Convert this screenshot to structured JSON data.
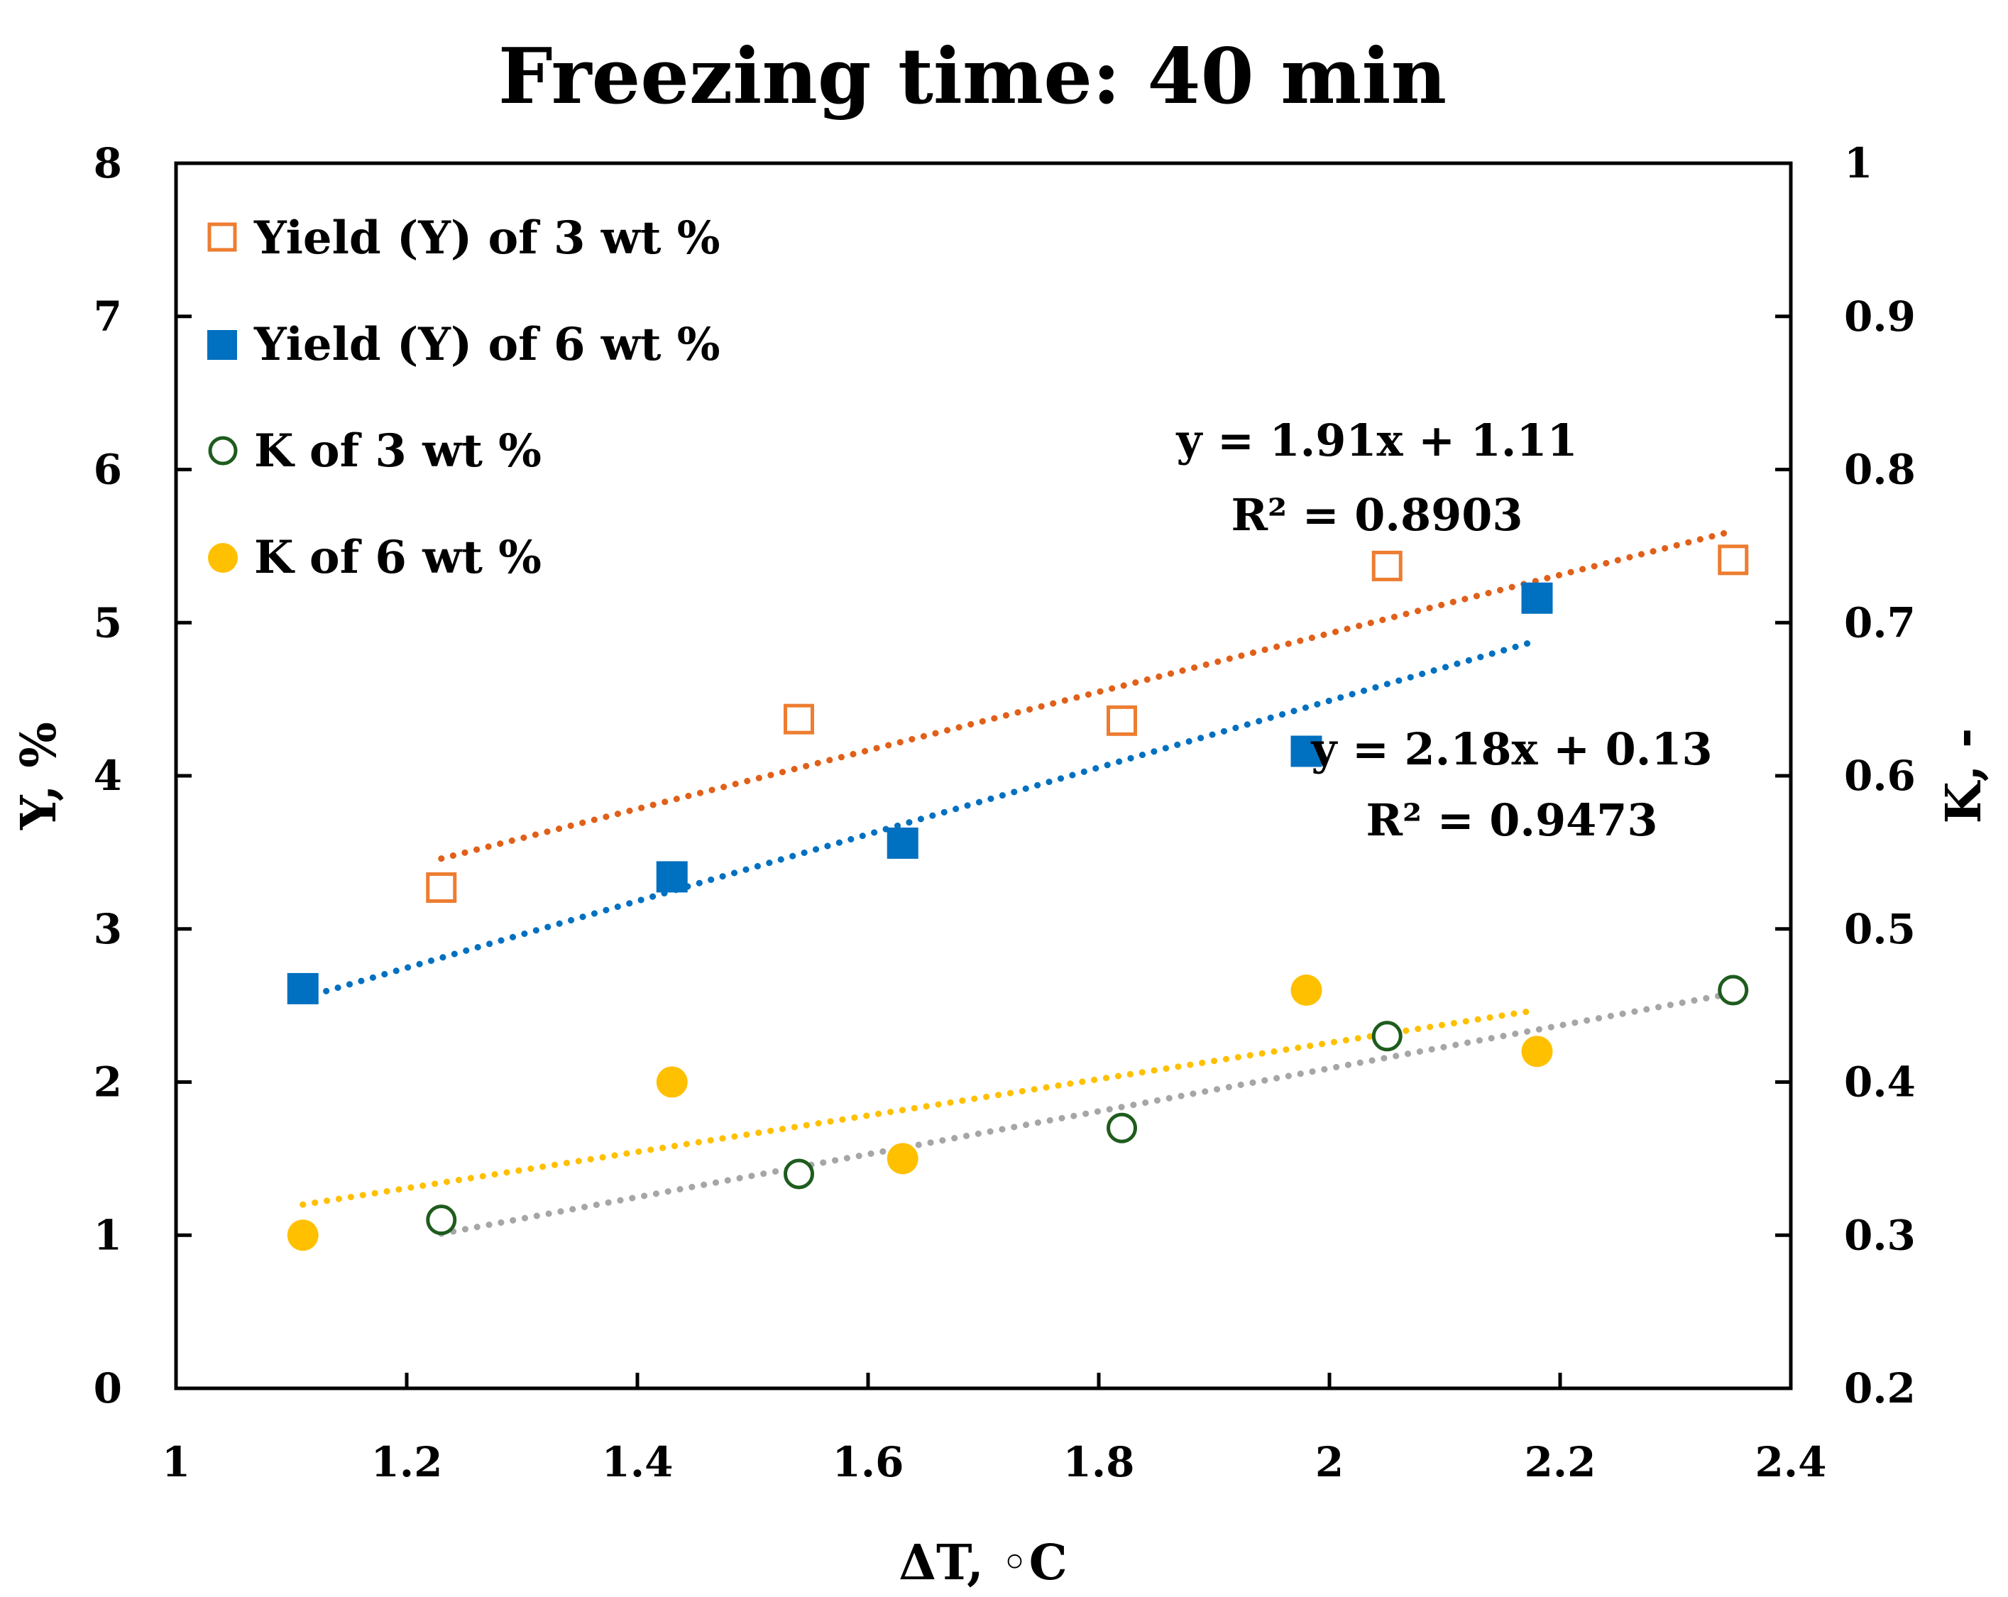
{
  "chart_data": {
    "type": "scatter",
    "title": "Freezing time: 40 min",
    "xlabel": "ΔT, ◦C",
    "ylabel": "Y, %",
    "y2label": "K, -",
    "xlim": [
      1,
      2.4
    ],
    "ylim": [
      0,
      8
    ],
    "y2lim": [
      0.2,
      1.0
    ],
    "x_ticks": [
      "1",
      "1.2",
      "1.4",
      "1.6",
      "1.8",
      "2",
      "2.2",
      "2.4"
    ],
    "y_ticks": [
      "0",
      "1",
      "2",
      "3",
      "4",
      "5",
      "6",
      "7",
      "8"
    ],
    "y2_ticks": [
      "0.2",
      "0.3",
      "0.4",
      "0.5",
      "0.6",
      "0.7",
      "0.8",
      "0.9",
      "1"
    ],
    "legend_position": "top-left",
    "series": [
      {
        "name": "Yield (Y) of 3 wt %",
        "axis": "left",
        "marker": "square-open",
        "color": "#ED7D31",
        "x": [
          1.23,
          1.54,
          1.82,
          2.05,
          2.35
        ],
        "y": [
          3.27,
          4.37,
          4.36,
          5.37,
          5.41
        ]
      },
      {
        "name": "Yield (Y) of 6 wt %",
        "axis": "left",
        "marker": "square-filled",
        "color": "#0070C0",
        "x": [
          1.11,
          1.43,
          1.63,
          1.98,
          2.18
        ],
        "y": [
          2.61,
          3.34,
          3.56,
          4.16,
          5.16
        ]
      },
      {
        "name": "K of 3 wt %",
        "axis": "right",
        "marker": "circle-open",
        "color": "#1E5C1E",
        "x": [
          1.23,
          1.54,
          1.82,
          2.05,
          2.35
        ],
        "y": [
          0.31,
          0.34,
          0.37,
          0.43,
          0.46
        ]
      },
      {
        "name": "K of 6 wt %",
        "axis": "right",
        "marker": "circle-filled",
        "color": "#FFC000",
        "x": [
          1.11,
          1.43,
          1.63,
          1.98,
          2.18
        ],
        "y": [
          0.3,
          0.4,
          0.35,
          0.46,
          0.42
        ]
      }
    ],
    "trendlines": [
      {
        "series": "Yield (Y) of 3 wt %",
        "axis": "left",
        "color": "#E0601A",
        "x_range": [
          1.23,
          2.35
        ],
        "slope": 1.91,
        "intercept": 1.11
      },
      {
        "series": "Yield (Y) of 6 wt %",
        "axis": "left",
        "color": "#0070C0",
        "x_range": [
          1.11,
          2.18
        ],
        "slope": 2.18,
        "intercept": 0.13
      },
      {
        "series": "K of 3 wt %",
        "axis": "right",
        "color": "#A6A6A6",
        "points": [
          [
            1.23,
            0.301
          ],
          [
            2.35,
            0.458
          ]
        ]
      },
      {
        "series": "K of 6 wt %",
        "axis": "right",
        "color": "#FFC000",
        "points": [
          [
            1.11,
            0.32
          ],
          [
            2.18,
            0.447
          ]
        ]
      }
    ],
    "annotations": [
      {
        "id": "eq1",
        "line1": "y = 1.91x + 1.11",
        "line2": "R² = 0.8903"
      },
      {
        "id": "eq2",
        "line1": "y = 2.18x + 0.13",
        "line2": "R² = 0.9473"
      }
    ]
  }
}
